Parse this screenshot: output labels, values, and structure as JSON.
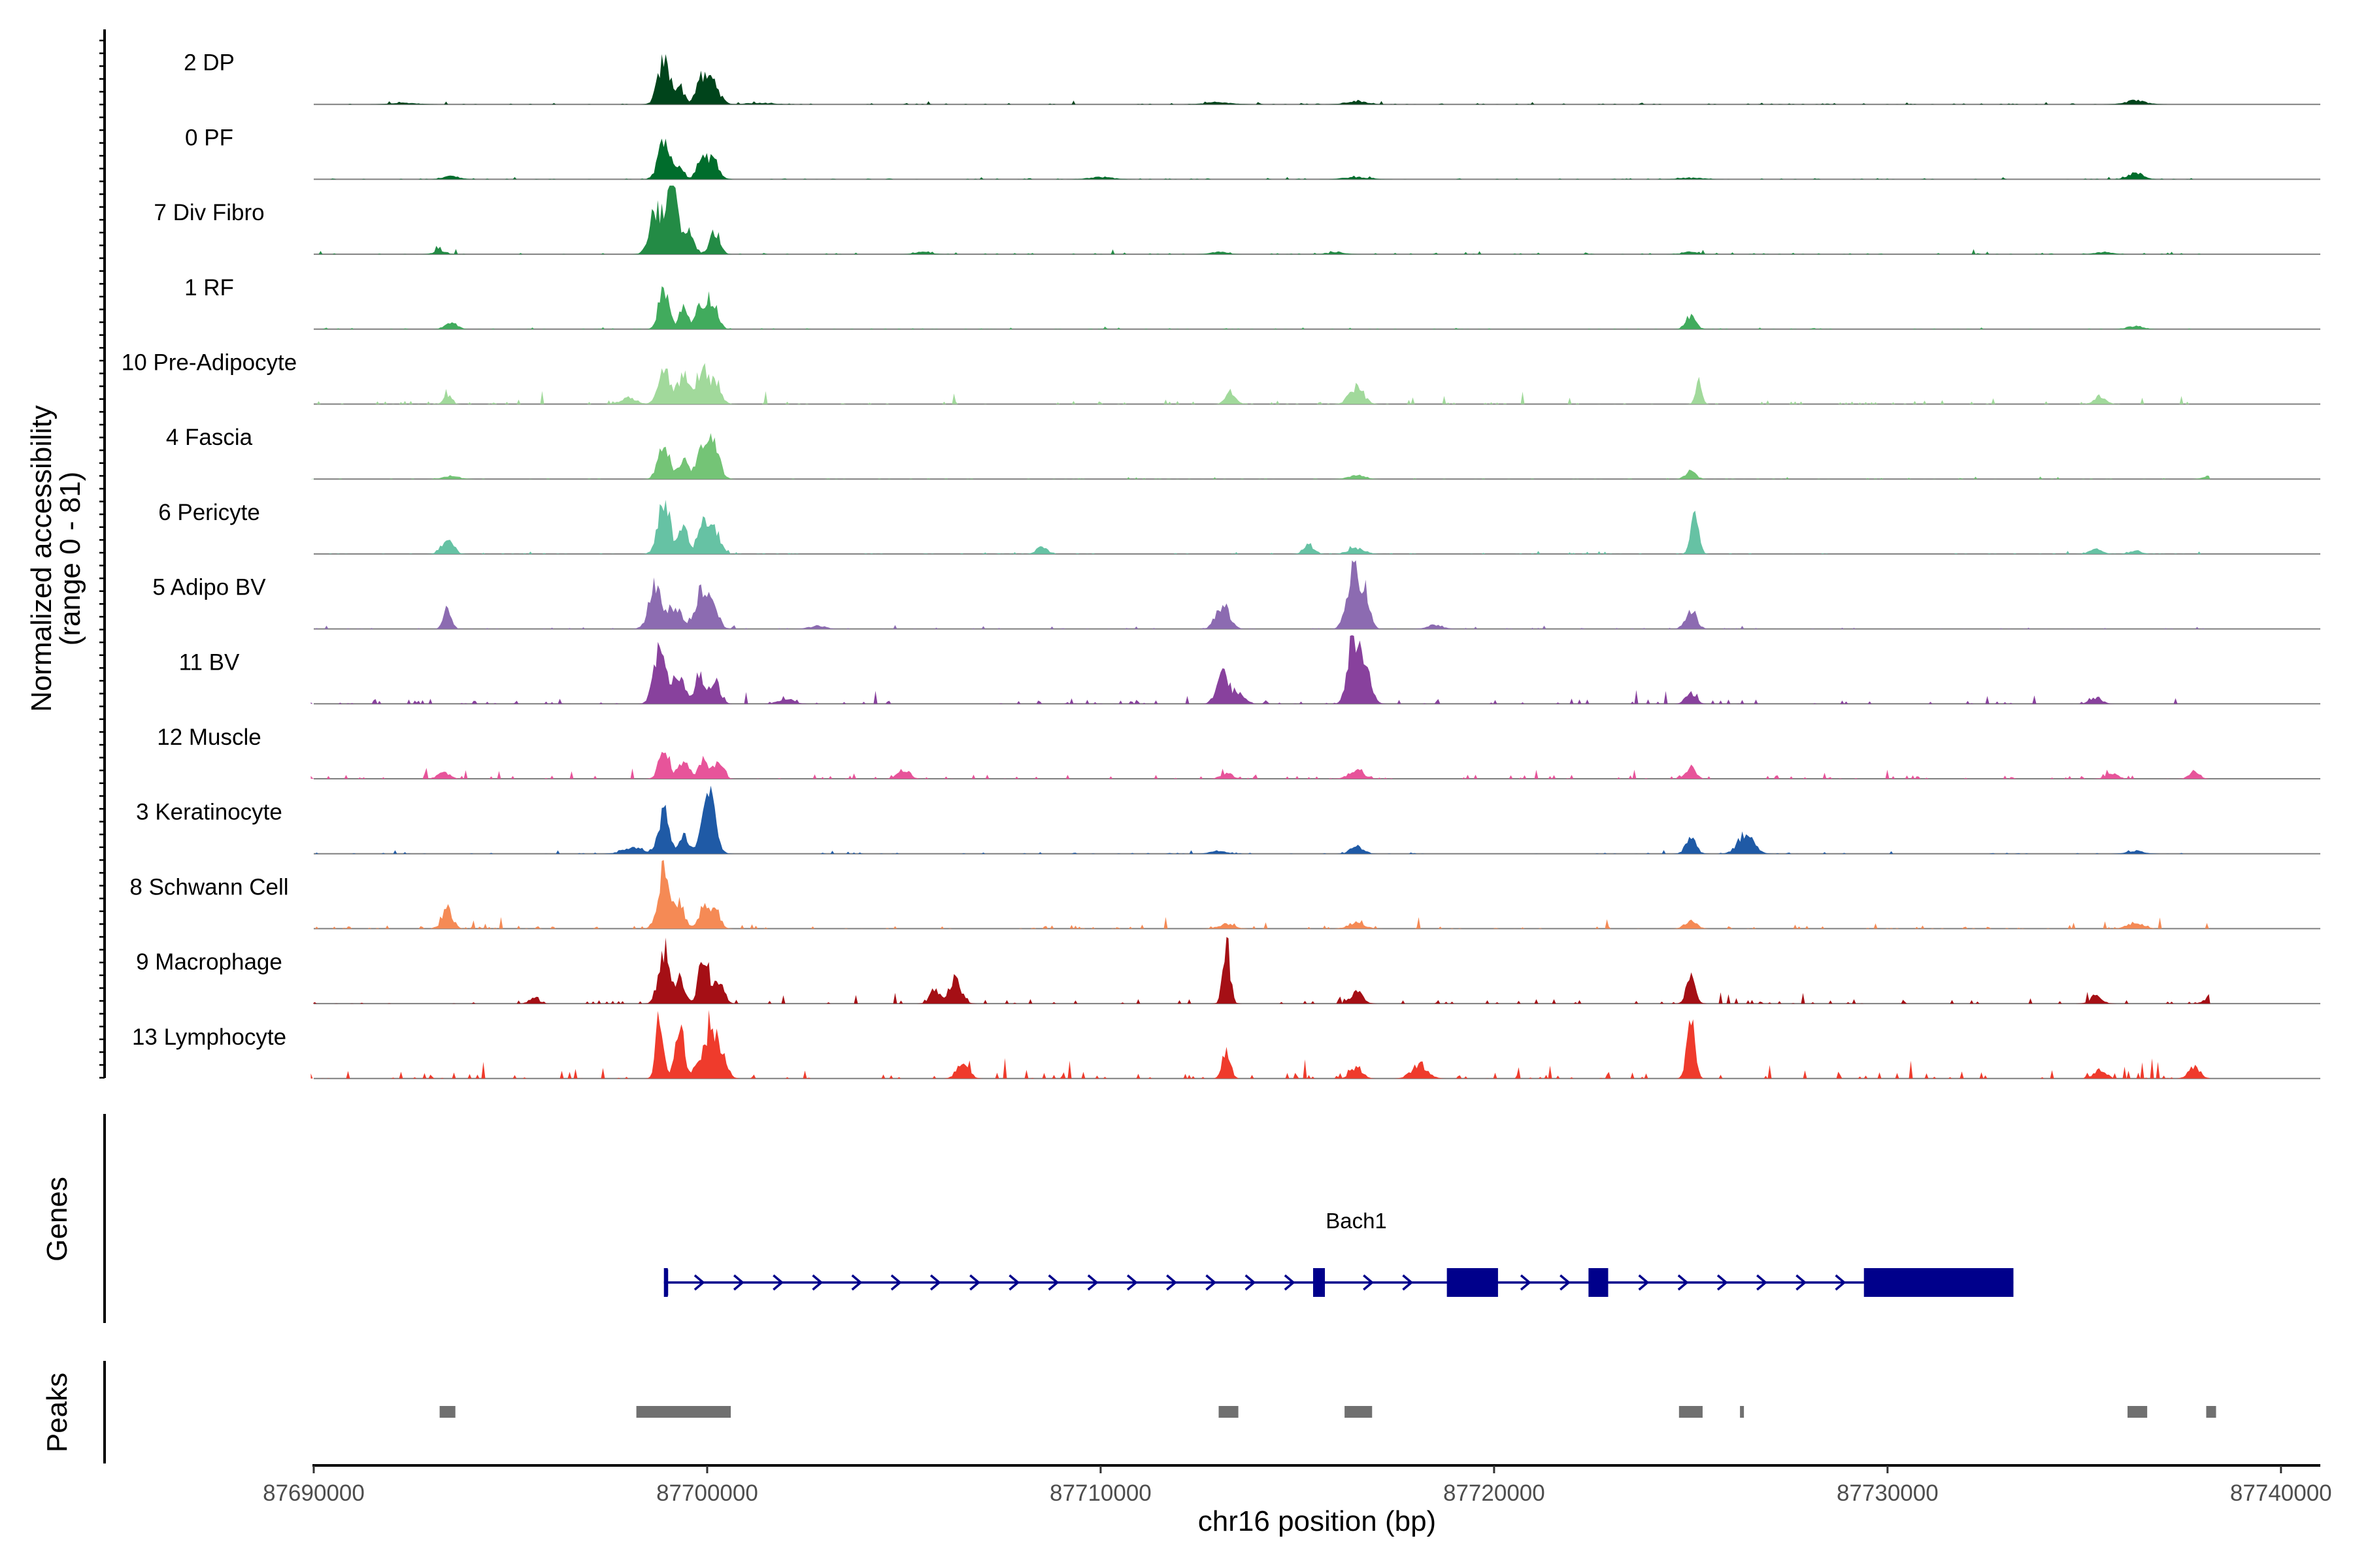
{
  "chart_data": {
    "type": "area",
    "description_kind": "genome-browser coverage plot",
    "ylabel_line1": "Normalized accessibility",
    "ylabel_line2": "(range 0 - 81)",
    "y_range": [
      0,
      81
    ],
    "xlabel": "chr16 position (bp)",
    "xlim": [
      87690000,
      87740000
    ],
    "x_ticks": [
      87690000,
      87700000,
      87710000,
      87720000,
      87730000,
      87740000
    ],
    "x_tick_labels": [
      "87690000",
      "87700000",
      "87710000",
      "87720000",
      "87730000",
      "87740000"
    ],
    "plot_start_bp": 87690000,
    "plot_end_bp": 87741000,
    "region_start_bp": 87689925,
    "region_end_bp": 87738200,
    "tracks": [
      {
        "name": "2 DP",
        "color": "#00441b",
        "peaks": [
          [
            87698900,
            55,
            150
          ],
          [
            87699300,
            22,
            120
          ],
          [
            87699800,
            25,
            110
          ],
          [
            87700100,
            33,
            180
          ],
          [
            87692300,
            2,
            300
          ],
          [
            87701300,
            2,
            300
          ],
          [
            87713000,
            3,
            300
          ],
          [
            87716500,
            4,
            250
          ],
          [
            87736300,
            5,
            250
          ]
        ],
        "noise": 1.5
      },
      {
        "name": "0 PF",
        "color": "#006d2c",
        "peaks": [
          [
            87698900,
            55,
            140
          ],
          [
            87699300,
            20,
            110
          ],
          [
            87699800,
            18,
            100
          ],
          [
            87700100,
            30,
            160
          ],
          [
            87693500,
            4,
            200
          ],
          [
            87710000,
            3,
            300
          ],
          [
            87716500,
            3,
            300
          ],
          [
            87725000,
            2,
            300
          ],
          [
            87736300,
            8,
            200
          ]
        ],
        "noise": 1.2
      },
      {
        "name": "7 Div Fibro",
        "color": "#238b45",
        "peaks": [
          [
            87698700,
            58,
            160
          ],
          [
            87699100,
            85,
            130
          ],
          [
            87699500,
            30,
            150
          ],
          [
            87700200,
            30,
            120
          ],
          [
            87693200,
            4,
            150
          ],
          [
            87705500,
            3,
            200
          ],
          [
            87713000,
            3,
            200
          ],
          [
            87716000,
            3,
            200
          ],
          [
            87725000,
            3,
            200
          ],
          [
            87735500,
            3,
            200
          ]
        ],
        "noise": 2.0
      },
      {
        "name": "1 RF",
        "color": "#41ab5d",
        "peaks": [
          [
            87698900,
            55,
            130
          ],
          [
            87699400,
            28,
            110
          ],
          [
            87699800,
            28,
            110
          ],
          [
            87700100,
            40,
            150
          ],
          [
            87693500,
            8,
            150
          ],
          [
            87725000,
            17,
            130
          ],
          [
            87736300,
            4,
            200
          ]
        ],
        "noise": 1.0
      },
      {
        "name": "10 Pre-Adipocyte",
        "color": "#a1d99b",
        "peaks": [
          [
            87698900,
            45,
            150
          ],
          [
            87699400,
            35,
            150
          ],
          [
            87699900,
            40,
            130
          ],
          [
            87700200,
            25,
            150
          ],
          [
            87693400,
            12,
            100
          ],
          [
            87698000,
            8,
            200
          ],
          [
            87713300,
            18,
            120
          ],
          [
            87716500,
            22,
            180
          ],
          [
            87725200,
            30,
            80
          ],
          [
            87735400,
            10,
            150
          ]
        ],
        "noise": 4.5
      },
      {
        "name": "4 Fascia",
        "color": "#74c476",
        "peaks": [
          [
            87698900,
            45,
            140
          ],
          [
            87699400,
            25,
            120
          ],
          [
            87699900,
            40,
            160
          ],
          [
            87700200,
            35,
            140
          ],
          [
            87693500,
            4,
            200
          ],
          [
            87716500,
            5,
            200
          ],
          [
            87725000,
            10,
            130
          ],
          [
            87738200,
            5,
            150
          ]
        ],
        "noise": 1.0
      },
      {
        "name": "6 Pericyte",
        "color": "#66c2a4",
        "peaks": [
          [
            87698900,
            68,
            150
          ],
          [
            87699400,
            30,
            120
          ],
          [
            87699900,
            40,
            140
          ],
          [
            87700200,
            30,
            140
          ],
          [
            87693400,
            18,
            150
          ],
          [
            87708500,
            10,
            130
          ],
          [
            87715300,
            12,
            130
          ],
          [
            87716500,
            8,
            200
          ],
          [
            87725100,
            48,
            100
          ],
          [
            87735300,
            7,
            150
          ],
          [
            87736300,
            5,
            150
          ]
        ],
        "noise": 1.2
      },
      {
        "name": "5 Adipo BV",
        "color": "#8c6bb1",
        "peaks": [
          [
            87698700,
            55,
            170
          ],
          [
            87699200,
            30,
            150
          ],
          [
            87699800,
            38,
            130
          ],
          [
            87700100,
            35,
            160
          ],
          [
            87693400,
            25,
            100
          ],
          [
            87713100,
            30,
            170
          ],
          [
            87716400,
            75,
            150
          ],
          [
            87716700,
            45,
            130
          ],
          [
            87725000,
            25,
            140
          ],
          [
            87702800,
            4,
            200
          ],
          [
            87718500,
            5,
            200
          ]
        ],
        "noise": 1.5
      },
      {
        "name": "11 BV",
        "color": "#88419d",
        "peaks": [
          [
            87698800,
            70,
            150
          ],
          [
            87699300,
            40,
            130
          ],
          [
            87699800,
            35,
            120
          ],
          [
            87700200,
            28,
            130
          ],
          [
            87713100,
            38,
            150
          ],
          [
            87713500,
            15,
            150
          ],
          [
            87716400,
            80,
            130
          ],
          [
            87716700,
            45,
            160
          ],
          [
            87725000,
            15,
            130
          ],
          [
            87702000,
            6,
            200
          ],
          [
            87735300,
            8,
            150
          ]
        ],
        "noise": 5.5
      },
      {
        "name": "12 Muscle",
        "color": "#e7549a",
        "peaks": [
          [
            87698900,
            38,
            130
          ],
          [
            87699400,
            25,
            130
          ],
          [
            87699900,
            25,
            120
          ],
          [
            87700300,
            20,
            120
          ],
          [
            87693300,
            8,
            150
          ],
          [
            87705000,
            12,
            150
          ],
          [
            87713200,
            8,
            150
          ],
          [
            87716500,
            10,
            200
          ],
          [
            87725000,
            12,
            130
          ],
          [
            87735700,
            8,
            150
          ],
          [
            87737800,
            10,
            130
          ]
        ],
        "noise": 5.0
      },
      {
        "name": "3 Keratinocyte",
        "color": "#1f5aa6",
        "peaks": [
          [
            87698900,
            58,
            130
          ],
          [
            87699400,
            22,
            120
          ],
          [
            87699900,
            35,
            120
          ],
          [
            87700100,
            60,
            140
          ],
          [
            87698100,
            8,
            250
          ],
          [
            87716500,
            10,
            150
          ],
          [
            87725000,
            20,
            130
          ],
          [
            87726400,
            25,
            200
          ],
          [
            87713000,
            4,
            200
          ],
          [
            87736300,
            4,
            200
          ]
        ],
        "noise": 1.8
      },
      {
        "name": "8 Schwann Cell",
        "color": "#f58a55",
        "peaks": [
          [
            87698900,
            72,
            150
          ],
          [
            87699300,
            35,
            120
          ],
          [
            87699900,
            25,
            130
          ],
          [
            87700200,
            25,
            130
          ],
          [
            87693400,
            25,
            130
          ],
          [
            87713200,
            6,
            200
          ],
          [
            87716500,
            8,
            200
          ],
          [
            87725000,
            10,
            150
          ],
          [
            87736300,
            8,
            200
          ]
        ],
        "noise": 4.0
      },
      {
        "name": "9 Macrophage",
        "color": "#a50f15",
        "peaks": [
          [
            87698900,
            68,
            140
          ],
          [
            87699300,
            30,
            130
          ],
          [
            87699900,
            60,
            120
          ],
          [
            87700300,
            30,
            130
          ],
          [
            87706300,
            30,
            150
          ],
          [
            87705800,
            18,
            130
          ],
          [
            87713200,
            75,
            90
          ],
          [
            87716500,
            15,
            150
          ],
          [
            87725000,
            38,
            110
          ],
          [
            87735300,
            10,
            150
          ],
          [
            87738200,
            8,
            150
          ],
          [
            87695600,
            8,
            120
          ]
        ],
        "noise": 6.0
      },
      {
        "name": "13 Lymphocyte",
        "color": "#ef3b2c",
        "peaks": [
          [
            87698800,
            85,
            100
          ],
          [
            87699300,
            70,
            110
          ],
          [
            87699800,
            30,
            120
          ],
          [
            87700100,
            80,
            110
          ],
          [
            87700400,
            30,
            130
          ],
          [
            87713200,
            40,
            100
          ],
          [
            87706500,
            20,
            150
          ],
          [
            87716500,
            15,
            150
          ],
          [
            87718100,
            18,
            200
          ],
          [
            87725000,
            75,
            100
          ],
          [
            87735400,
            12,
            150
          ],
          [
            87737800,
            15,
            150
          ]
        ],
        "noise": 9.0
      }
    ],
    "genes_title": "Genes",
    "gene": {
      "name": "Bach1",
      "strand": "+",
      "start_bp": 87698900,
      "end_bp": 87733200,
      "exons": [
        [
          87698900,
          87698980
        ],
        [
          87715400,
          87715700
        ],
        [
          87718800,
          87720100
        ],
        [
          87722400,
          87722900
        ],
        [
          87729400,
          87733200
        ]
      ],
      "chevron_start_bp": 87699800,
      "chevron_step_bp": 1000
    },
    "peaks_title": "Peaks",
    "peak_regions": [
      [
        87693200,
        87693600
      ],
      [
        87698200,
        87700600
      ],
      [
        87713000,
        87713500
      ],
      [
        87716200,
        87716900
      ],
      [
        87724700,
        87725300
      ],
      [
        87726250,
        87726350
      ],
      [
        87736100,
        87736600
      ],
      [
        87738100,
        87738350
      ]
    ]
  }
}
